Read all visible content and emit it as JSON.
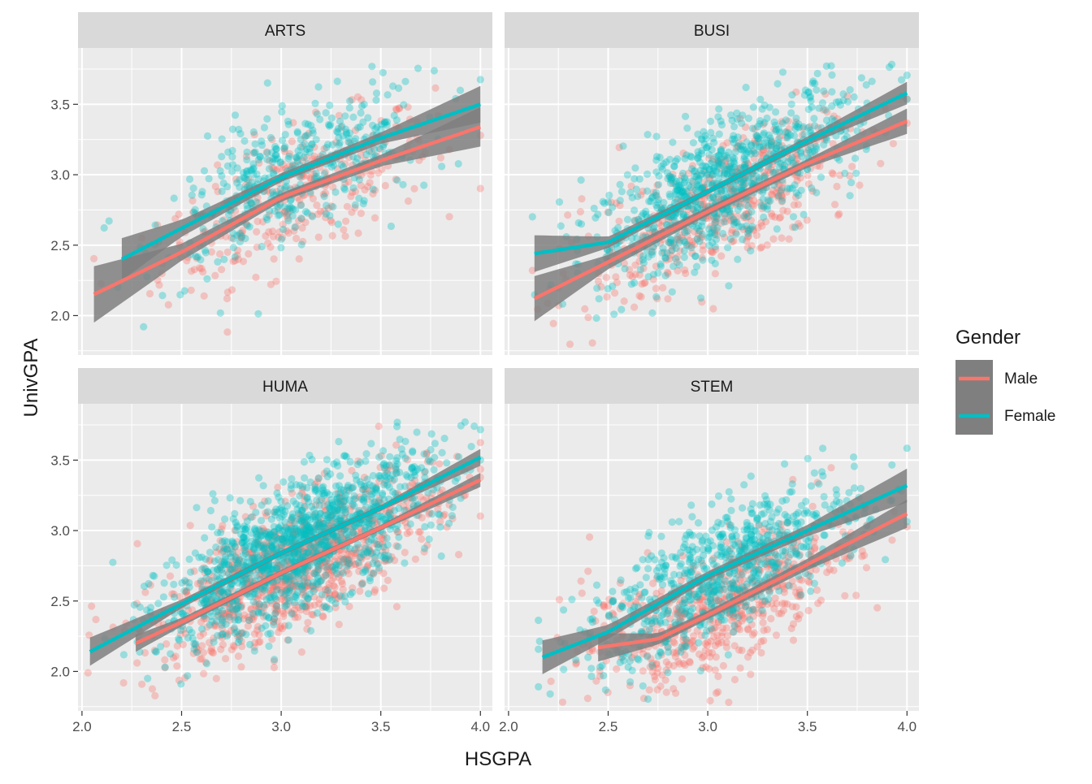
{
  "colors": {
    "panel_bg": "#EBEBEB",
    "strip_bg": "#D9D9D9",
    "grid": "#FFFFFF",
    "ribbon": "#7F7F7F",
    "male": "#F8766D",
    "female": "#00BFC4",
    "text": "#1A1A1A",
    "tick_text": "#4D4D4D"
  },
  "chart_data": {
    "type": "scatter",
    "title": "",
    "xlabel": "HSGPA",
    "ylabel": "UnivGPA",
    "xlim": [
      1.98,
      4.06
    ],
    "ylim": [
      1.72,
      3.9
    ],
    "x_ticks": [
      "2.0",
      "2.5",
      "3.0",
      "3.5",
      "4.0"
    ],
    "y_ticks": [
      "2.0",
      "2.5",
      "3.0",
      "3.5"
    ],
    "grid": true,
    "legend": {
      "title": "Gender",
      "position": "right",
      "entries": [
        "Male",
        "Female"
      ]
    },
    "point_alpha": 0.35,
    "smoother": "loess with confidence ribbon",
    "facets": [
      {
        "label": "ARTS",
        "n_male": 320,
        "n_female": 420,
        "x_range": [
          2.06,
          4.0
        ],
        "series": [
          {
            "name": "Male",
            "x": [
              2.06,
              2.5,
              3.0,
              3.5,
              4.0
            ],
            "y": [
              2.15,
              2.45,
              2.84,
              3.1,
              3.34
            ],
            "se": [
              0.2,
              0.06,
              0.03,
              0.04,
              0.14
            ]
          },
          {
            "name": "Female",
            "x": [
              2.2,
              2.5,
              3.0,
              3.5,
              4.0
            ],
            "y": [
              2.4,
              2.62,
              2.98,
              3.26,
              3.5
            ],
            "se": [
              0.15,
              0.06,
              0.03,
              0.04,
              0.13
            ]
          }
        ]
      },
      {
        "label": "BUSI",
        "n_male": 520,
        "n_female": 820,
        "x_range": [
          2.12,
          4.0
        ],
        "series": [
          {
            "name": "Male",
            "x": [
              2.13,
              2.5,
              3.0,
              3.5,
              4.0
            ],
            "y": [
              2.12,
              2.38,
              2.74,
              3.08,
              3.38
            ],
            "se": [
              0.16,
              0.05,
              0.03,
              0.03,
              0.09
            ]
          },
          {
            "name": "Female",
            "x": [
              2.13,
              2.5,
              3.0,
              3.5,
              4.0
            ],
            "y": [
              2.44,
              2.52,
              2.88,
              3.24,
              3.58
            ],
            "se": [
              0.13,
              0.04,
              0.02,
              0.03,
              0.08
            ]
          }
        ]
      },
      {
        "label": "HUMA",
        "n_male": 1000,
        "n_female": 1200,
        "x_range": [
          2.03,
          4.0
        ],
        "series": [
          {
            "name": "Male",
            "x": [
              2.27,
              2.5,
              3.0,
              3.5,
              4.0
            ],
            "y": [
              2.2,
              2.35,
              2.7,
              3.02,
              3.36
            ],
            "se": [
              0.06,
              0.03,
              0.02,
              0.02,
              0.05
            ]
          },
          {
            "name": "Female",
            "x": [
              2.04,
              2.5,
              3.0,
              3.5,
              4.0
            ],
            "y": [
              2.14,
              2.48,
              2.84,
              3.16,
              3.52
            ],
            "se": [
              0.1,
              0.03,
              0.02,
              0.02,
              0.06
            ]
          }
        ]
      },
      {
        "label": "STEM",
        "n_male": 600,
        "n_female": 700,
        "x_range": [
          2.15,
          4.0
        ],
        "series": [
          {
            "name": "Male",
            "x": [
              2.45,
              2.75,
              3.0,
              3.5,
              4.0
            ],
            "y": [
              2.17,
              2.23,
              2.4,
              2.76,
              3.12
            ],
            "se": [
              0.1,
              0.04,
              0.03,
              0.04,
              0.1
            ]
          },
          {
            "name": "Female",
            "x": [
              2.17,
              2.5,
              3.0,
              3.5,
              4.0
            ],
            "y": [
              2.1,
              2.28,
              2.68,
              3.0,
              3.32
            ],
            "se": [
              0.12,
              0.05,
              0.03,
              0.04,
              0.12
            ]
          }
        ]
      }
    ]
  }
}
